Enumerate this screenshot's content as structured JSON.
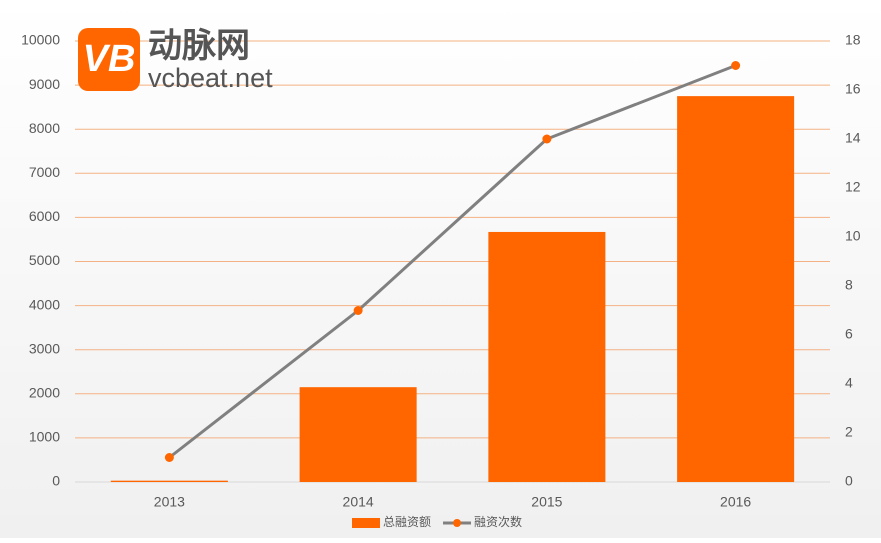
{
  "logo": {
    "mark": "VB",
    "name": "动脉网",
    "site": "vcbeat.net"
  },
  "chart_data": {
    "type": "bar",
    "categories": [
      "2013",
      "2014",
      "2015",
      "2016"
    ],
    "series": [
      {
        "name": "总融资额",
        "type": "bar",
        "color": "#ff6600",
        "values": [
          30,
          2150,
          5670,
          8750
        ]
      },
      {
        "name": "融资次数",
        "type": "line",
        "axis": "y2",
        "color": "#808080",
        "marker_color": "#ff6600",
        "values": [
          1,
          7,
          14,
          17
        ]
      }
    ],
    "ylim": [
      0,
      10000
    ],
    "yticks": [
      0,
      1000,
      2000,
      3000,
      4000,
      5000,
      6000,
      7000,
      8000,
      9000,
      10000
    ],
    "y2lim": [
      0,
      18
    ],
    "y2ticks": [
      0,
      2,
      4,
      6,
      8,
      10,
      12,
      14,
      16,
      18
    ],
    "grid": true,
    "grid_color": "#f4b183",
    "legend": "bottom"
  }
}
